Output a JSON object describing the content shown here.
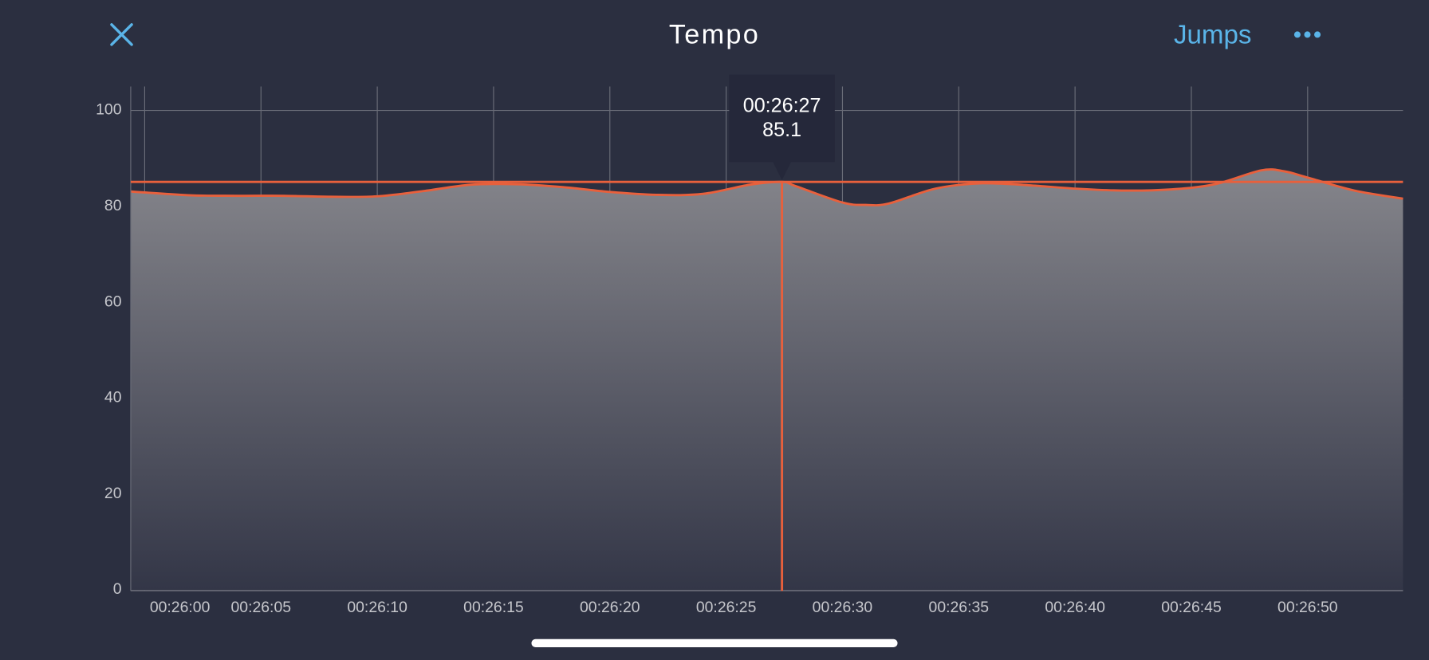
{
  "header": {
    "title": "Tempo",
    "action": "Jumps"
  },
  "chart_data": {
    "type": "area",
    "x": [
      1559.4,
      1560,
      1562,
      1564,
      1566,
      1568,
      1570,
      1572,
      1574,
      1576,
      1578,
      1580,
      1582,
      1584,
      1586,
      1587.4,
      1588,
      1590,
      1591,
      1592,
      1594,
      1596,
      1598,
      1600,
      1602,
      1604,
      1606,
      1608,
      1609,
      1610,
      1612,
      1614.1
    ],
    "series": [
      {
        "name": "Tempo",
        "color": "#e8603c",
        "values": [
          83.1,
          82.9,
          82.3,
          82.2,
          82.2,
          82.0,
          82.1,
          83.2,
          84.5,
          84.6,
          84.0,
          83.0,
          82.4,
          82.6,
          84.5,
          85.1,
          84.2,
          80.8,
          80.3,
          80.6,
          83.7,
          84.8,
          84.4,
          83.7,
          83.3,
          83.5,
          84.6,
          87.5,
          87.3,
          86.0,
          83.3,
          81.6
        ]
      }
    ],
    "xlim": [
      1559.4,
      1614.1
    ],
    "xticks": [
      {
        "value": 1560,
        "label": "00:26:00"
      },
      {
        "value": 1565,
        "label": "00:26:05"
      },
      {
        "value": 1570,
        "label": "00:26:10"
      },
      {
        "value": 1575,
        "label": "00:26:15"
      },
      {
        "value": 1580,
        "label": "00:26:20"
      },
      {
        "value": 1585,
        "label": "00:26:25"
      },
      {
        "value": 1590,
        "label": "00:26:30"
      },
      {
        "value": 1595,
        "label": "00:26:35"
      },
      {
        "value": 1600,
        "label": "00:26:40"
      },
      {
        "value": 1605,
        "label": "00:26:45"
      },
      {
        "value": 1610,
        "label": "00:26:50"
      }
    ],
    "ylim": [
      0,
      105
    ],
    "yticks": [
      0,
      20,
      40,
      60,
      80,
      100
    ],
    "grid": true,
    "cursor": {
      "x": 1587.4,
      "x_label": "00:26:27",
      "value": 85.1
    }
  }
}
